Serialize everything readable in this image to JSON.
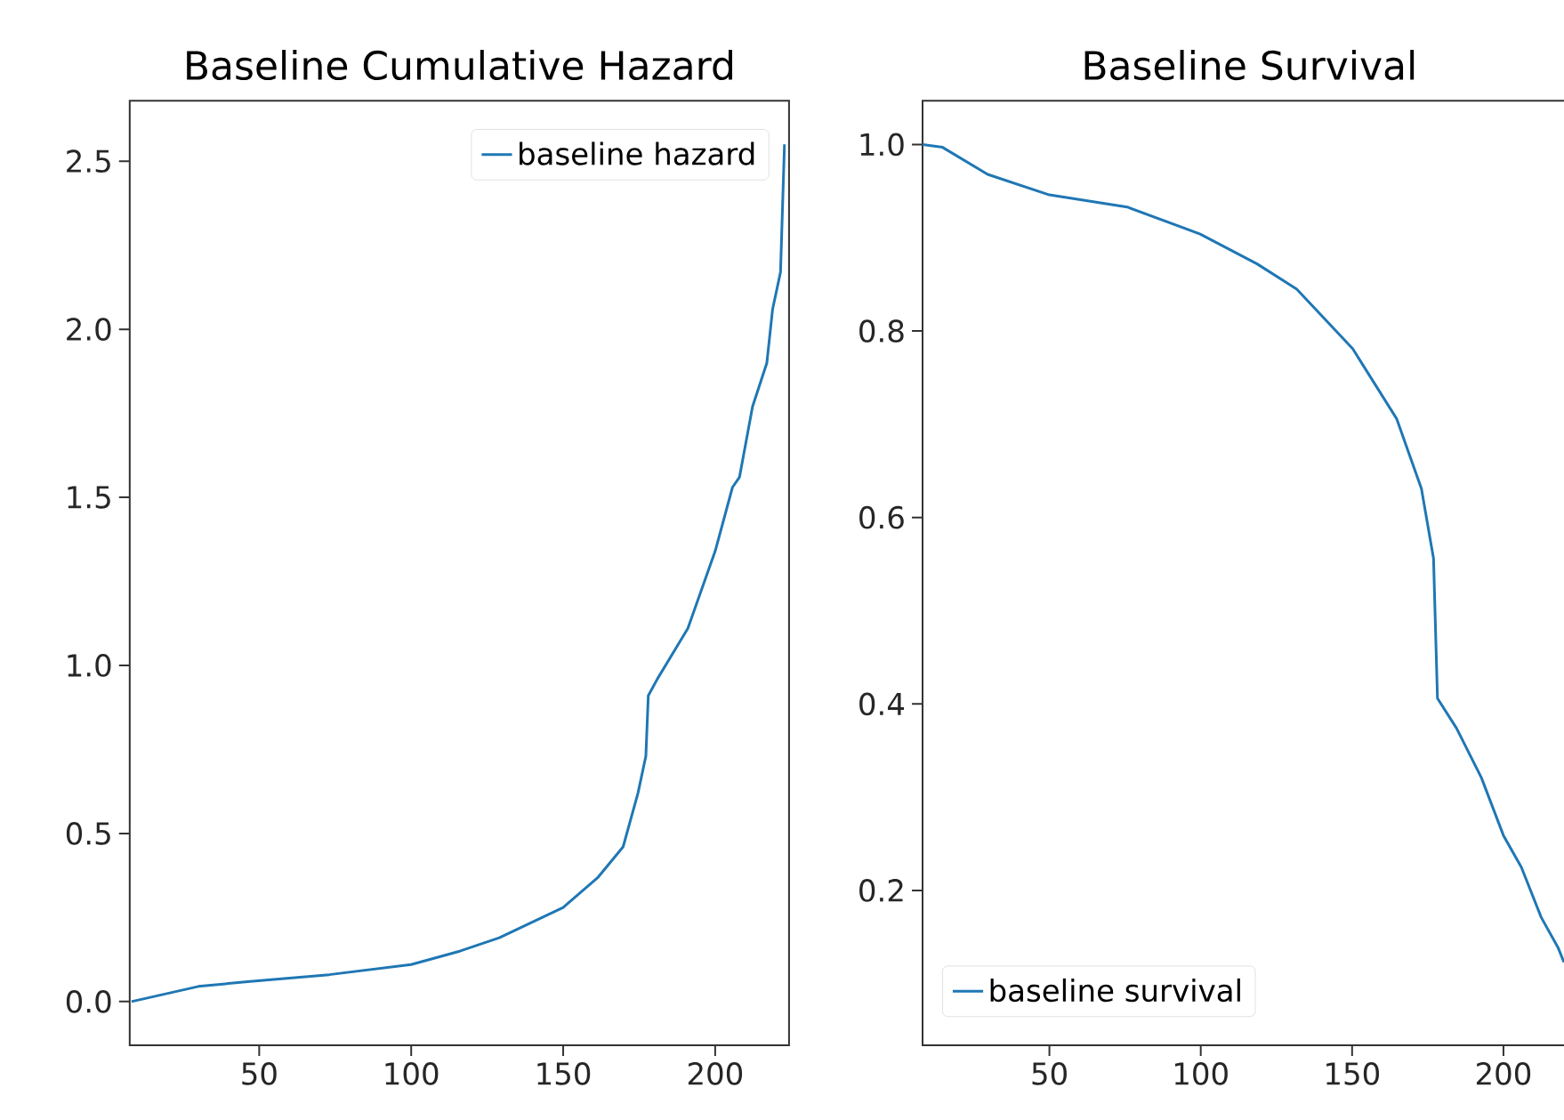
{
  "chart_data": [
    {
      "type": "line",
      "title": "Baseline Cumulative Hazard",
      "x": [
        8,
        30,
        47,
        73,
        100,
        116,
        129,
        150,
        161.5,
        169.7,
        174.6,
        177.2,
        178,
        181,
        191,
        200,
        205.7,
        208,
        212.3,
        217,
        218.9,
        221.5,
        222.8
      ],
      "series": [
        {
          "name": "baseline hazard",
          "color": "#1f77b4",
          "values": [
            0.0,
            0.045,
            0.06,
            0.08,
            0.11,
            0.15,
            0.19,
            0.28,
            0.37,
            0.46,
            0.62,
            0.73,
            0.91,
            0.96,
            1.11,
            1.34,
            1.53,
            1.56,
            1.77,
            1.9,
            2.06,
            2.17,
            2.55
          ]
        }
      ],
      "xlim": [
        7.4,
        224.3
      ],
      "ylim": [
        -0.13,
        2.68
      ],
      "xticks": [
        50,
        100,
        150,
        200
      ],
      "yticks": [
        {
          "value": 0,
          "label": "0.0"
        },
        0.5,
        {
          "value": 1,
          "label": "1.0"
        },
        1.5,
        {
          "value": 2,
          "label": "2.0"
        },
        2.5
      ],
      "legend": "top right"
    },
    {
      "type": "line",
      "title": "Baseline Survival",
      "x": [
        8.1,
        14.7,
        29.6,
        50,
        75.7,
        99.8,
        118.6,
        131.7,
        150.2,
        164.7,
        172.9,
        176.9,
        178.2,
        184.5,
        192.7,
        200,
        205.9,
        212.5,
        218,
        220
      ],
      "series": [
        {
          "name": "baseline survival",
          "color": "#1f77b4",
          "values": [
            1.0,
            0.997,
            0.968,
            0.946,
            0.933,
            0.904,
            0.872,
            0.845,
            0.781,
            0.706,
            0.631,
            0.556,
            0.406,
            0.374,
            0.321,
            0.259,
            0.225,
            0.171,
            0.139,
            0.123
          ]
        }
      ],
      "xlim": [
        8.1,
        224
      ],
      "ylim": [
        0.034,
        1.047
      ],
      "xticks": [
        50,
        100,
        150,
        200
      ],
      "yticks": [
        0.2,
        0.4,
        0.6,
        0.8,
        {
          "value": 1,
          "label": "1.0"
        }
      ],
      "legend": "bottom left"
    }
  ]
}
